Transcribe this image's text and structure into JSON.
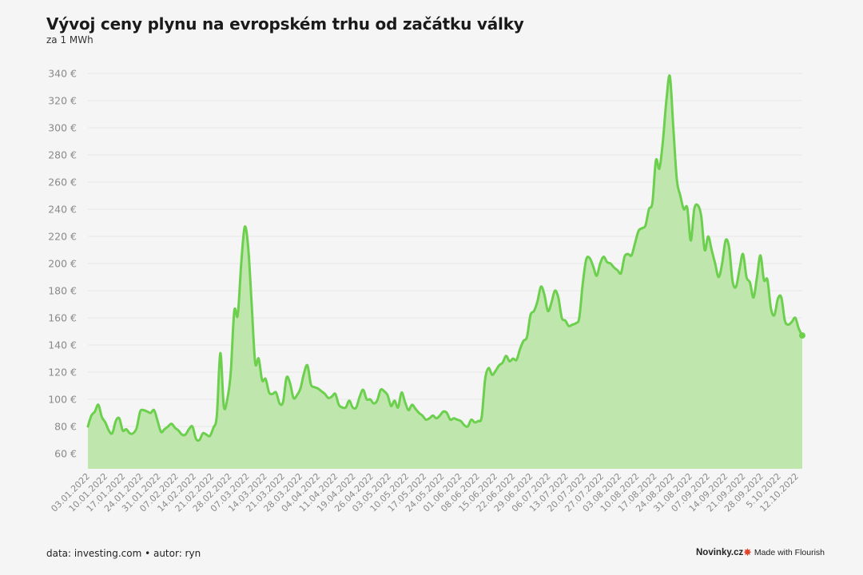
{
  "header": {
    "title": "Vývoj ceny plynu na evropském trhu od začátku války",
    "subtitle": "za 1 MWh"
  },
  "footer": {
    "source": "data: investing.com • autor: ryn",
    "brand": "Novinky.cz",
    "flourish": "Made with Flourish",
    "flourish_icon": "flourish-burst-icon"
  },
  "colors": {
    "line": "#6cd04e",
    "fill": "#bfe6ad",
    "grid": "#e6e6e6",
    "background": "#f5f5f5"
  },
  "chart_data": {
    "type": "area",
    "title": "Vývoj ceny plynu na evropském trhu od začátku války",
    "subtitle": "za 1 MWh",
    "xlabel": "",
    "ylabel": "",
    "ylim": [
      50,
      345
    ],
    "yticks": [
      60,
      80,
      100,
      120,
      140,
      160,
      180,
      200,
      220,
      240,
      260,
      280,
      300,
      320,
      340
    ],
    "ytick_labels": [
      "60 €",
      "80 €",
      "100 €",
      "120 €",
      "140 €",
      "160 €",
      "180 €",
      "200 €",
      "220 €",
      "240 €",
      "260 €",
      "280 €",
      "300 €",
      "320 €",
      "340 €"
    ],
    "xtick_labels": [
      "03.01.2022",
      "10.01.2022",
      "17.01.2022",
      "24.01.2022",
      "31.01.2022",
      "07.02.2022",
      "14.02.2022",
      "21.02.2022",
      "28.02.2022",
      "07.03.2022",
      "14.03.2022",
      "21.03.2022",
      "28.03.2022",
      "04.04.2022",
      "11.04.2022",
      "19.04.2022",
      "26.04.2022",
      "03.05.2022",
      "10.05.2022",
      "17.05.2022",
      "24.05.2022",
      "01.06.2022",
      "08.06.2022",
      "15.06.2022",
      "22.06.2022",
      "29.06.2022",
      "06.07.2022",
      "13.07.2022",
      "20.07.2022",
      "27.07.2022",
      "03.08.2022",
      "10.08.2022",
      "17.08.2022",
      "24.08.2022",
      "31.08.2022",
      "07.09.2022",
      "14.09.2022",
      "21.09.2022",
      "28.09.2022",
      "5.10.2022",
      "12.10.2022"
    ],
    "grid": true,
    "legend": "none",
    "series": [
      {
        "values": [
          80,
          88,
          91,
          96,
          87,
          83,
          77,
          75,
          84,
          86,
          77,
          78,
          75,
          75,
          79,
          91,
          92,
          91,
          90,
          92,
          84,
          76,
          78,
          80,
          82,
          79,
          77,
          74,
          74,
          78,
          80,
          71,
          70,
          75,
          74,
          73,
          79,
          88,
          134,
          95,
          100,
          120,
          165,
          162,
          200,
          227,
          212,
          170,
          127,
          130,
          114,
          115,
          105,
          104,
          105,
          97,
          98,
          116,
          112,
          101,
          103,
          108,
          119,
          125,
          111,
          109,
          108,
          106,
          104,
          101,
          102,
          104,
          96,
          94,
          94,
          99,
          94,
          94,
          102,
          107,
          100,
          100,
          97,
          99,
          107,
          106,
          103,
          95,
          99,
          94,
          105,
          98,
          92,
          96,
          93,
          90,
          88,
          85,
          86,
          88,
          86,
          88,
          91,
          90,
          85,
          86,
          85,
          84,
          81,
          80,
          85,
          83,
          84,
          87,
          115,
          123,
          118,
          121,
          125,
          127,
          132,
          128,
          130,
          129,
          137,
          143,
          146,
          162,
          165,
          172,
          183,
          177,
          165,
          171,
          180,
          175,
          160,
          158,
          154,
          155,
          156,
          160,
          185,
          203,
          204,
          198,
          191,
          200,
          205,
          201,
          200,
          197,
          195,
          193,
          205,
          207,
          206,
          215,
          224,
          226,
          228,
          240,
          245,
          276,
          270,
          290,
          320,
          338,
          300,
          262,
          250,
          240,
          241,
          217,
          240,
          243,
          235,
          210,
          220,
          210,
          200,
          190,
          200,
          217,
          212,
          187,
          183,
          196,
          207,
          190,
          186,
          175,
          190,
          206,
          188,
          188,
          167,
          162,
          174,
          175,
          158,
          155,
          157,
          160,
          152,
          147
        ]
      }
    ]
  }
}
